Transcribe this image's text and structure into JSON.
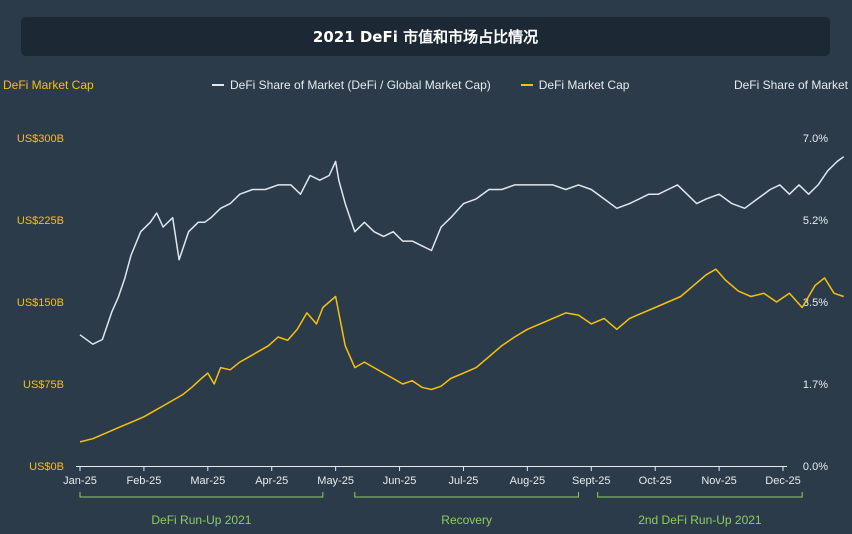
{
  "title": "2021 DeFi 市值和市场占比情况",
  "colors": {
    "background": "#2c3b4a",
    "title_bg": "#1c2833",
    "market_cap": "#f4c20d",
    "share": "#dfe6ee",
    "axis_text_right": "#e6ebf0",
    "phase": "#8fce5a"
  },
  "chart_data": {
    "type": "line",
    "left_axis_title": "DeFi Market Cap",
    "right_axis_title": "DeFi Share of Market",
    "left_ticks": [
      "US$0B",
      "US$75B",
      "US$150B",
      "US$225B",
      "US$300B"
    ],
    "right_ticks": [
      "0.0%",
      "1.7%",
      "3.5%",
      "5.2%",
      "7.0%"
    ],
    "left_range": [
      0,
      300
    ],
    "right_range": [
      0,
      7.0
    ],
    "x_labels": [
      "Jan-25",
      "Feb-25",
      "Mar-25",
      "Apr-25",
      "May-25",
      "Jun-25",
      "Jul-25",
      "Aug-25",
      "Sept-25",
      "Oct-25",
      "Nov-25",
      "Dec-25"
    ],
    "legend": {
      "share_label": "DeFi Share of Market (DeFi / Global Market Cap)",
      "cap_label": "DeFi Market Cap"
    },
    "phases": [
      {
        "label": "DeFi Run-Up 2021",
        "start": 0,
        "end": 3.8
      },
      {
        "label": "Recovery",
        "start": 4.3,
        "end": 7.8
      },
      {
        "label": "2nd DeFi Run-Up 2021",
        "start": 8.1,
        "end": 11.3
      }
    ],
    "series": [
      {
        "name": "DeFi Share of Market (DeFi / Global Market Cap)",
        "axis": "right",
        "x": [
          0,
          0.2,
          0.35,
          0.5,
          0.6,
          0.7,
          0.8,
          0.95,
          1.1,
          1.2,
          1.3,
          1.45,
          1.55,
          1.7,
          1.85,
          1.95,
          2.05,
          2.2,
          2.35,
          2.5,
          2.7,
          2.9,
          3.1,
          3.3,
          3.45,
          3.6,
          3.75,
          3.9,
          4.0,
          4.05,
          4.15,
          4.3,
          4.45,
          4.6,
          4.75,
          4.9,
          5.05,
          5.2,
          5.35,
          5.5,
          5.65,
          5.8,
          6.0,
          6.2,
          6.4,
          6.6,
          6.8,
          7.0,
          7.2,
          7.4,
          7.6,
          7.8,
          8.0,
          8.2,
          8.4,
          8.6,
          8.75,
          8.9,
          9.05,
          9.2,
          9.35,
          9.5,
          9.65,
          9.8,
          10.0,
          10.2,
          10.4,
          10.6,
          10.8,
          10.95,
          11.1,
          11.25,
          11.4,
          11.55,
          11.7,
          11.85,
          11.95
        ],
        "values": [
          2.8,
          2.6,
          2.7,
          3.3,
          3.6,
          4.0,
          4.5,
          5.0,
          5.2,
          5.4,
          5.1,
          5.3,
          4.4,
          5.0,
          5.2,
          5.2,
          5.3,
          5.5,
          5.6,
          5.8,
          5.9,
          5.9,
          6.0,
          6.0,
          5.8,
          6.2,
          6.1,
          6.2,
          6.5,
          6.1,
          5.6,
          5.0,
          5.2,
          5.0,
          4.9,
          5.0,
          4.8,
          4.8,
          4.7,
          4.6,
          5.1,
          5.3,
          5.6,
          5.7,
          5.9,
          5.9,
          6.0,
          6.0,
          6.0,
          6.0,
          5.9,
          6.0,
          5.9,
          5.7,
          5.5,
          5.6,
          5.7,
          5.8,
          5.8,
          5.9,
          6.0,
          5.8,
          5.6,
          5.7,
          5.8,
          5.6,
          5.5,
          5.7,
          5.9,
          6.0,
          5.8,
          6.0,
          5.8,
          6.0,
          6.3,
          6.5,
          6.6
        ]
      },
      {
        "name": "DeFi Market Cap",
        "axis": "left",
        "x": [
          0,
          0.2,
          0.4,
          0.6,
          0.8,
          1.0,
          1.15,
          1.3,
          1.45,
          1.6,
          1.75,
          1.9,
          2.0,
          2.1,
          2.2,
          2.35,
          2.5,
          2.65,
          2.8,
          2.95,
          3.1,
          3.25,
          3.4,
          3.55,
          3.7,
          3.8,
          3.9,
          4.0,
          4.05,
          4.15,
          4.3,
          4.45,
          4.6,
          4.75,
          4.9,
          5.05,
          5.2,
          5.35,
          5.5,
          5.65,
          5.8,
          6.0,
          6.2,
          6.4,
          6.6,
          6.8,
          7.0,
          7.2,
          7.4,
          7.6,
          7.8,
          8.0,
          8.2,
          8.4,
          8.6,
          8.8,
          9.0,
          9.2,
          9.4,
          9.6,
          9.8,
          9.95,
          10.1,
          10.3,
          10.5,
          10.7,
          10.9,
          11.1,
          11.3,
          11.5,
          11.65,
          11.8,
          11.95
        ],
        "values": [
          22,
          25,
          30,
          35,
          40,
          45,
          50,
          55,
          60,
          65,
          72,
          80,
          85,
          75,
          90,
          88,
          95,
          100,
          105,
          110,
          118,
          115,
          125,
          140,
          130,
          145,
          150,
          155,
          140,
          110,
          90,
          95,
          90,
          85,
          80,
          75,
          78,
          72,
          70,
          73,
          80,
          85,
          90,
          100,
          110,
          118,
          125,
          130,
          135,
          140,
          138,
          130,
          135,
          125,
          135,
          140,
          145,
          150,
          155,
          165,
          175,
          180,
          170,
          160,
          155,
          158,
          150,
          158,
          145,
          165,
          172,
          158,
          155
        ]
      }
    ]
  }
}
